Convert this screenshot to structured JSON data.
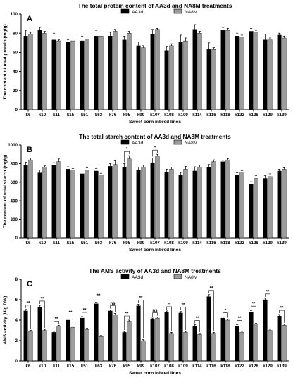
{
  "chart_data": [
    {
      "type": "bar",
      "panel": "A",
      "title": "The total protein content of AA3d and NA8M treatments",
      "xlabel": "Sweet corn inbred lines",
      "ylabel": "The content of total protein (mg/g)",
      "ylim": [
        0,
        100
      ],
      "yticks": [
        "0",
        "20",
        "40",
        "60",
        "80",
        "100"
      ],
      "categories": [
        "k6",
        "k10",
        "k11",
        "k15",
        "k51",
        "k63",
        "k76",
        "k95",
        "k99",
        "k107",
        "k108",
        "k109",
        "k114",
        "k116",
        "k118",
        "k122",
        "k128",
        "k129",
        "k139"
      ],
      "series": [
        {
          "name": "AA3d",
          "color": "#000000",
          "values": [
            77,
            83,
            73,
            71,
            72,
            77,
            77,
            73,
            67,
            79,
            62,
            71,
            84,
            63,
            83,
            77,
            82,
            73,
            78
          ],
          "errors": [
            6,
            3,
            7,
            2,
            5,
            6,
            4,
            4,
            4,
            5,
            4,
            7,
            5,
            7,
            3,
            3,
            3,
            6,
            2
          ]
        },
        {
          "name": "NA8M",
          "color": "#9c9c9c",
          "values": [
            79,
            80,
            72,
            72,
            73,
            77,
            82,
            80,
            65,
            84,
            67,
            72,
            80,
            63,
            83,
            76,
            81,
            73,
            75
          ],
          "errors": [
            2,
            2,
            1,
            2,
            3,
            2,
            2,
            2,
            2,
            1,
            2,
            3,
            2,
            2,
            2,
            2,
            2,
            2,
            2
          ]
        }
      ],
      "significance": [],
      "legend_location": "top-center"
    },
    {
      "type": "bar",
      "panel": "B",
      "title": "The total starch content of AA3d and NA8M treatments",
      "xlabel": "Sweet corn inbred lines",
      "ylabel": "The content of total starch (mg/g)",
      "ylim": [
        0,
        1000
      ],
      "yticks": [
        "0",
        "200",
        "400",
        "600",
        "800",
        "1000"
      ],
      "categories": [
        "k6",
        "k10",
        "k11",
        "k15",
        "k51",
        "k63",
        "k76",
        "k95",
        "k99",
        "k107",
        "k108",
        "k109",
        "k114",
        "k116",
        "k118",
        "k122",
        "k128",
        "k129",
        "k139"
      ],
      "series": [
        {
          "name": "AA3d",
          "color": "#000000",
          "values": [
            780,
            700,
            780,
            740,
            690,
            720,
            770,
            760,
            730,
            810,
            710,
            680,
            720,
            760,
            820,
            680,
            580,
            640,
            720
          ],
          "errors": [
            35,
            30,
            30,
            25,
            40,
            25,
            30,
            40,
            30,
            50,
            30,
            25,
            45,
            30,
            15,
            20,
            25,
            30,
            20
          ]
        },
        {
          "name": "NA8M",
          "color": "#9c9c9c",
          "values": [
            840,
            760,
            820,
            730,
            730,
            680,
            790,
            850,
            760,
            880,
            740,
            740,
            760,
            820,
            840,
            710,
            640,
            660,
            740
          ],
          "errors": [
            20,
            15,
            30,
            15,
            25,
            15,
            40,
            35,
            25,
            20,
            20,
            30,
            25,
            20,
            15,
            15,
            30,
            30,
            15
          ]
        }
      ],
      "significance": [
        {
          "category": "k95",
          "label": "*"
        },
        {
          "category": "k107",
          "label": "*"
        }
      ],
      "legend_location": "top-center"
    },
    {
      "type": "bar",
      "panel": "C",
      "title": "The AMS activity of AA3d and NA8M treatments",
      "xlabel": "Sweet corn inbred lines",
      "ylabel": "AMS activity (U/g DW)",
      "ylim": [
        0,
        8
      ],
      "yticks": [
        "0",
        "2",
        "4",
        "6",
        "8"
      ],
      "categories": [
        "k6",
        "k10",
        "k11",
        "k15",
        "k51",
        "k63",
        "k76",
        "k95",
        "k99",
        "k107",
        "k108",
        "k109",
        "k114",
        "k116",
        "k118",
        "k122",
        "k128",
        "k129",
        "k139"
      ],
      "series": [
        {
          "name": "AA3d",
          "color": "#000000",
          "values": [
            4.9,
            5.3,
            2.8,
            4.0,
            4.2,
            5.6,
            4.9,
            2.8,
            5.4,
            4.1,
            4.8,
            4.7,
            3.4,
            6.3,
            4.2,
            3.4,
            4.8,
            6.0,
            4.4
          ],
          "errors": [
            0.15,
            0.15,
            0.1,
            0.1,
            0.15,
            0.15,
            0.1,
            0.1,
            0.15,
            0.1,
            0.1,
            0.15,
            0.15,
            0.2,
            0.1,
            0.15,
            0.15,
            0.15,
            0.15
          ]
        },
        {
          "name": "NA8M",
          "color": "#9c9c9c",
          "values": [
            2.9,
            3.0,
            3.4,
            3.3,
            3.1,
            2.4,
            4.5,
            3.9,
            2.0,
            4.2,
            2.7,
            2.8,
            2.6,
            2.7,
            4.0,
            2.8,
            3.6,
            3.0,
            3.5
          ],
          "errors": [
            0.1,
            0.1,
            0.1,
            0.1,
            0.1,
            0.1,
            0.15,
            0.1,
            0.1,
            0.1,
            0.1,
            0.1,
            0.1,
            0.1,
            0.1,
            0.1,
            0.1,
            0.1,
            0.1
          ]
        }
      ],
      "significance": [
        {
          "category": "k6",
          "label": "**"
        },
        {
          "category": "k10",
          "label": "**"
        },
        {
          "category": "k11",
          "label": "**"
        },
        {
          "category": "k15",
          "label": "**"
        },
        {
          "category": "k51",
          "label": "**"
        },
        {
          "category": "k63",
          "label": "**"
        },
        {
          "category": "k76",
          "label": "ns"
        },
        {
          "category": "k95",
          "label": "**"
        },
        {
          "category": "k99",
          "label": "**"
        },
        {
          "category": "k107",
          "label": "ns"
        },
        {
          "category": "k108",
          "label": "**"
        },
        {
          "category": "k109",
          "label": "**"
        },
        {
          "category": "k114",
          "label": "**"
        },
        {
          "category": "k116",
          "label": "**"
        },
        {
          "category": "k118",
          "label": "*"
        },
        {
          "category": "k122",
          "label": "**"
        },
        {
          "category": "k128",
          "label": "**"
        },
        {
          "category": "k129",
          "label": "**"
        },
        {
          "category": "k139",
          "label": "**"
        }
      ],
      "legend_location": "top-center"
    }
  ]
}
